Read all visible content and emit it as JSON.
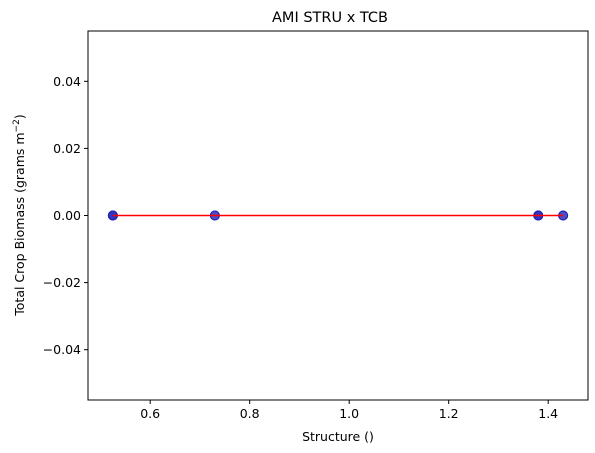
{
  "chart_data": {
    "type": "scatter",
    "title": "AMI STRU x TCB",
    "xlabel": "Structure ()",
    "ylabel_main": "Total Crop Biomass (grams m",
    "ylabel_sup": "−2",
    "ylabel_end": ")",
    "xlim": [
      0.475,
      1.48
    ],
    "ylim": [
      -0.055,
      0.055
    ],
    "xticks": [
      {
        "value": 0.6,
        "label": "0.6"
      },
      {
        "value": 0.8,
        "label": "0.8"
      },
      {
        "value": 1.0,
        "label": "1.0"
      },
      {
        "value": 1.2,
        "label": "1.2"
      },
      {
        "value": 1.4,
        "label": "1.4"
      }
    ],
    "yticks": [
      {
        "value": -0.04,
        "label": "−0.04"
      },
      {
        "value": -0.02,
        "label": "−0.02"
      },
      {
        "value": 0.0,
        "label": "0.00"
      },
      {
        "value": 0.02,
        "label": "0.02"
      },
      {
        "value": 0.04,
        "label": "0.04"
      }
    ],
    "points": {
      "x": [
        0.525,
        0.525,
        0.525,
        0.73,
        0.73,
        1.38,
        1.38,
        1.38,
        1.43,
        1.43
      ],
      "y": [
        0,
        0,
        0,
        0,
        0,
        0,
        0,
        0,
        0,
        0
      ]
    },
    "fit_line": {
      "x": [
        0.525,
        1.43
      ],
      "y": [
        0,
        0
      ]
    },
    "grid": false,
    "colors": {
      "points": "#1f1fb4",
      "fit_line": "#ff0000",
      "axes": "#000000"
    }
  }
}
